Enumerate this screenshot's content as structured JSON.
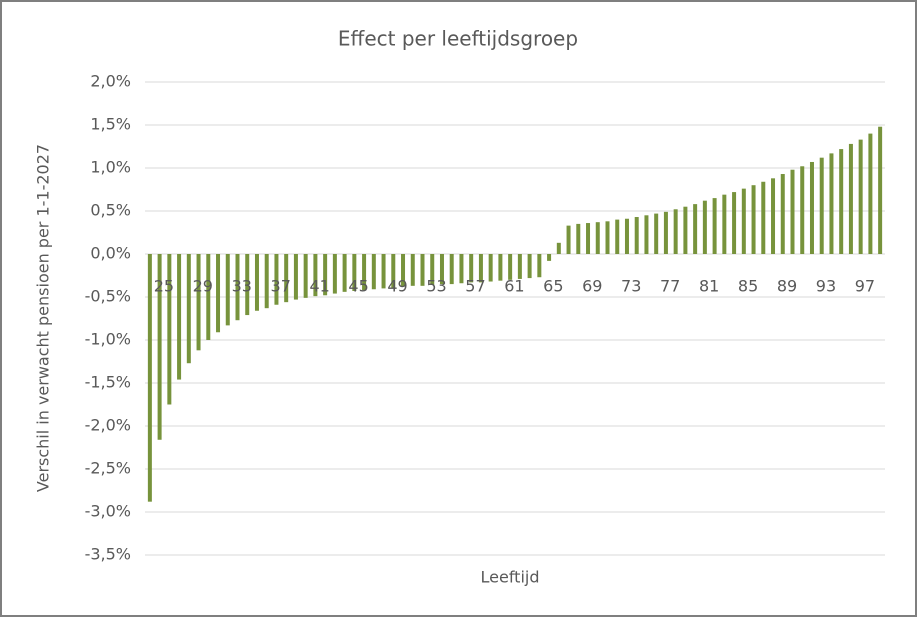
{
  "chart_data": {
    "type": "bar",
    "title": "Effect per leeftijdsgroep",
    "x_label": "Leeftijd",
    "y_label": "Verschil in verwacht pensioen  per 1-1-2027",
    "color": "#77933c",
    "grid": true,
    "categories": [
      "25",
      null,
      null,
      null,
      "29",
      null,
      null,
      null,
      "33",
      null,
      null,
      null,
      "37",
      null,
      null,
      null,
      "41",
      null,
      null,
      null,
      "45",
      null,
      null,
      null,
      "49",
      null,
      null,
      null,
      "53",
      null,
      null,
      null,
      "57",
      null,
      null,
      null,
      "61",
      null,
      null,
      null,
      "65",
      null,
      null,
      null,
      "69",
      null,
      null,
      null,
      "73",
      null,
      null,
      null,
      "77",
      null,
      null,
      null,
      "81",
      null,
      null,
      null,
      "85",
      null,
      null,
      null,
      "89",
      null,
      null,
      null,
      "93",
      null,
      null,
      null,
      "97",
      null,
      null,
      null
    ],
    "values": [
      -2.88,
      -2.16,
      -1.75,
      -1.46,
      -1.27,
      -1.12,
      -1.0,
      -0.91,
      -0.83,
      -0.77,
      -0.71,
      -0.66,
      -0.63,
      -0.59,
      -0.56,
      -0.53,
      -0.51,
      -0.49,
      -0.48,
      -0.46,
      -0.44,
      -0.43,
      -0.42,
      -0.41,
      -0.4,
      -0.39,
      -0.38,
      -0.37,
      -0.37,
      -0.36,
      -0.35,
      -0.35,
      -0.34,
      -0.33,
      -0.33,
      -0.32,
      -0.31,
      -0.3,
      -0.29,
      -0.28,
      -0.27,
      -0.08,
      0.13,
      0.33,
      0.35,
      0.36,
      0.37,
      0.38,
      0.4,
      0.41,
      0.43,
      0.45,
      0.47,
      0.49,
      0.52,
      0.55,
      0.58,
      0.62,
      0.65,
      0.69,
      0.72,
      0.76,
      0.8,
      0.84,
      0.88,
      0.93,
      0.98,
      1.02,
      1.07,
      1.12,
      1.17,
      1.22,
      1.28,
      1.33,
      1.4,
      1.48
    ],
    "ylim": [
      -3.5,
      2.0
    ],
    "yticks": [
      {
        "value": -3.5,
        "label": "-3,5%"
      },
      {
        "value": -3.0,
        "label": "-3,0%"
      },
      {
        "value": -2.5,
        "label": "-2,5%"
      },
      {
        "value": -2.0,
        "label": "-2,0%"
      },
      {
        "value": -1.5,
        "label": "-1,5%"
      },
      {
        "value": -1.0,
        "label": "-1,0%"
      },
      {
        "value": -0.5,
        "label": "-0,5%"
      },
      {
        "value": 0,
        "label": "0,0%"
      },
      {
        "value": 0.5,
        "label": "0,5%"
      },
      {
        "value": 1.0,
        "label": "1,0%"
      },
      {
        "value": 1.5,
        "label": "1,5%"
      },
      {
        "value": 2.0,
        "label": "2,0%"
      }
    ]
  }
}
